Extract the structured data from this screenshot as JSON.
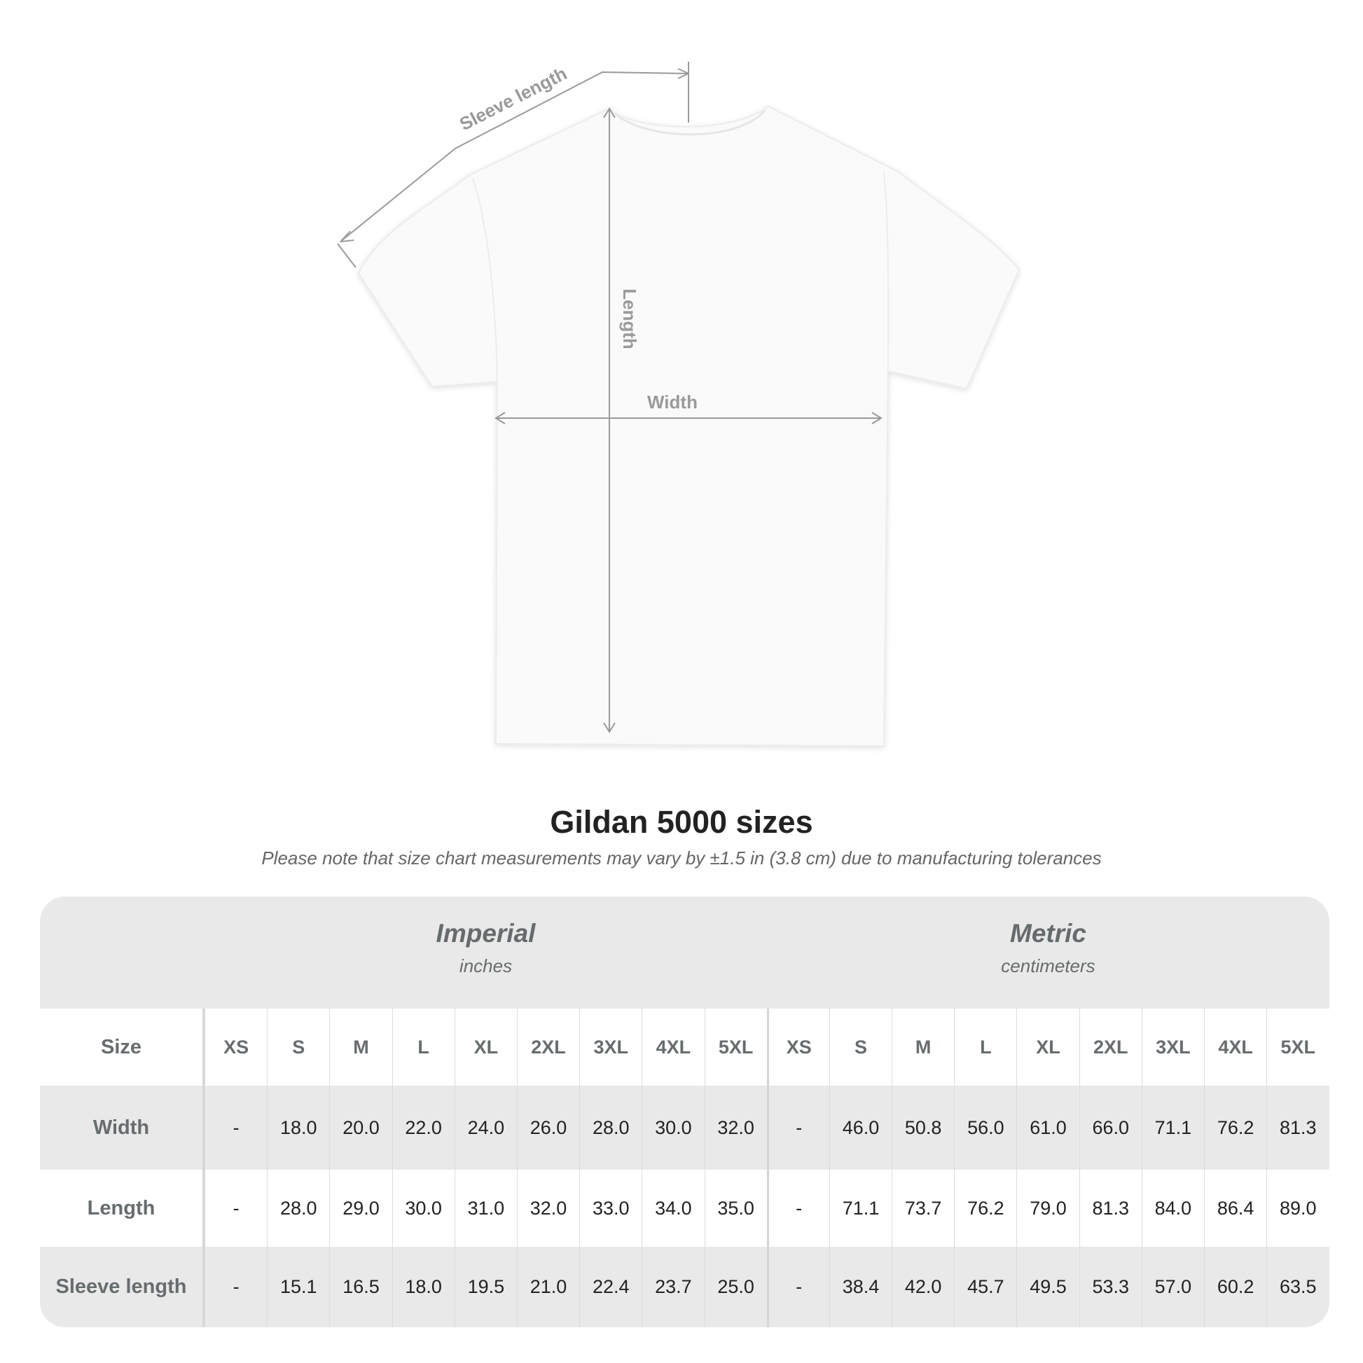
{
  "diagram": {
    "labels": {
      "sleeve": "Sleeve length",
      "length": "Length",
      "width": "Width"
    }
  },
  "title": "Gildan 5000 sizes",
  "note": "Please note that size chart measurements may vary by ±1.5 in (3.8 cm) due to manufacturing tolerances",
  "table": {
    "imperial": {
      "name": "Imperial",
      "unit": "inches"
    },
    "metric": {
      "name": "Metric",
      "unit": "centimeters"
    },
    "size_label": "Size",
    "sizes": [
      "XS",
      "S",
      "M",
      "L",
      "XL",
      "2XL",
      "3XL",
      "4XL",
      "5XL"
    ],
    "rows": [
      {
        "label": "Width",
        "imperial": [
          "-",
          "18.0",
          "20.0",
          "22.0",
          "24.0",
          "26.0",
          "28.0",
          "30.0",
          "32.0"
        ],
        "metric": [
          "-",
          "46.0",
          "50.8",
          "56.0",
          "61.0",
          "66.0",
          "71.1",
          "76.2",
          "81.3"
        ]
      },
      {
        "label": "Length",
        "imperial": [
          "-",
          "28.0",
          "29.0",
          "30.0",
          "31.0",
          "32.0",
          "33.0",
          "34.0",
          "35.0"
        ],
        "metric": [
          "-",
          "71.1",
          "73.7",
          "76.2",
          "79.0",
          "81.3",
          "84.0",
          "86.4",
          "89.0"
        ]
      },
      {
        "label": "Sleeve length",
        "imperial": [
          "-",
          "15.1",
          "16.5",
          "18.0",
          "19.5",
          "21.0",
          "22.4",
          "23.7",
          "25.0"
        ],
        "metric": [
          "-",
          "38.4",
          "42.0",
          "45.7",
          "49.5",
          "53.3",
          "57.0",
          "60.2",
          "63.5"
        ]
      }
    ]
  },
  "colors": {
    "header_bg": "#e9e9e9",
    "label_text": "#676c6e",
    "dimension_lines": "#9a9a9a"
  }
}
